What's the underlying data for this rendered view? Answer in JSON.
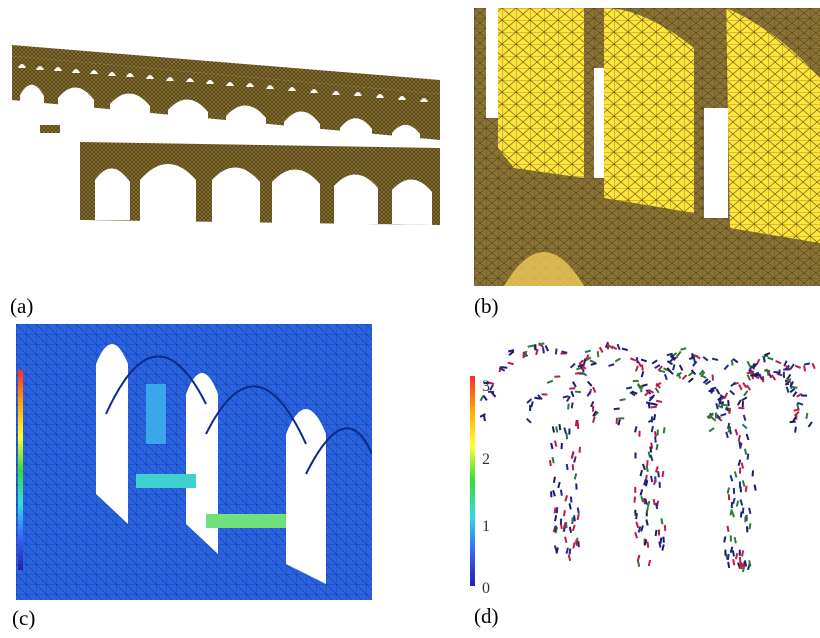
{
  "figure": {
    "captions": {
      "a": "(a)",
      "b": "(b)",
      "c": "(c)",
      "d": "(d)"
    },
    "panels": {
      "a": {
        "description_icon": "aqueduct-mesh-wireframe-icon"
      },
      "b": {
        "description_icon": "aqueduct-pillar-closeup-icon"
      },
      "c": {
        "description_icon": "aqueduct-stress-field-icon",
        "colorbar_ticks": [
          "",
          "",
          "",
          "",
          "",
          "",
          "",
          "",
          "",
          "",
          "",
          ""
        ]
      },
      "d": {
        "description_icon": "aqueduct-vector-field-icon",
        "colorbar_ticks": [
          "3",
          "2",
          "1",
          "0"
        ]
      }
    },
    "colors": {
      "mesh_dark": "#6b5a2a",
      "mesh_light": "#c9a840",
      "pillar_yellow": "#ffe53a",
      "stress_blue": "#1f55d6",
      "vector_navy": "#1a1a70",
      "vector_red": "#c0194a"
    }
  }
}
